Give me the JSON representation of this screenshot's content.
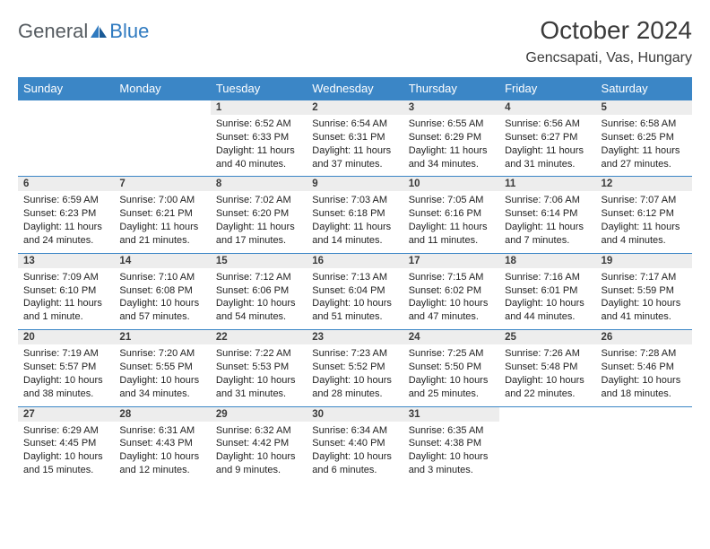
{
  "logo": {
    "text1": "General",
    "text2": "Blue"
  },
  "title": "October 2024",
  "location": "Gencsapati, Vas, Hungary",
  "colors": {
    "headerBg": "#3b86c6",
    "headerText": "#ffffff",
    "dayNumBg": "#ededed",
    "rowDivider": "#3b86c6",
    "textColor": "#222222",
    "logoGray": "#555b60",
    "logoBlue": "#2f7ac0",
    "pageBg": "#ffffff"
  },
  "typography": {
    "title_fontsize": 28,
    "location_fontsize": 16,
    "dayheader_fontsize": 13,
    "daynum_fontsize": 11.5,
    "cell_fontsize": 11
  },
  "dayHeaders": [
    "Sunday",
    "Monday",
    "Tuesday",
    "Wednesday",
    "Thursday",
    "Friday",
    "Saturday"
  ],
  "weeks": [
    [
      null,
      null,
      {
        "n": "1",
        "sr": "6:52 AM",
        "ss": "6:33 PM",
        "dl": "11 hours and 40 minutes."
      },
      {
        "n": "2",
        "sr": "6:54 AM",
        "ss": "6:31 PM",
        "dl": "11 hours and 37 minutes."
      },
      {
        "n": "3",
        "sr": "6:55 AM",
        "ss": "6:29 PM",
        "dl": "11 hours and 34 minutes."
      },
      {
        "n": "4",
        "sr": "6:56 AM",
        "ss": "6:27 PM",
        "dl": "11 hours and 31 minutes."
      },
      {
        "n": "5",
        "sr": "6:58 AM",
        "ss": "6:25 PM",
        "dl": "11 hours and 27 minutes."
      }
    ],
    [
      {
        "n": "6",
        "sr": "6:59 AM",
        "ss": "6:23 PM",
        "dl": "11 hours and 24 minutes."
      },
      {
        "n": "7",
        "sr": "7:00 AM",
        "ss": "6:21 PM",
        "dl": "11 hours and 21 minutes."
      },
      {
        "n": "8",
        "sr": "7:02 AM",
        "ss": "6:20 PM",
        "dl": "11 hours and 17 minutes."
      },
      {
        "n": "9",
        "sr": "7:03 AM",
        "ss": "6:18 PM",
        "dl": "11 hours and 14 minutes."
      },
      {
        "n": "10",
        "sr": "7:05 AM",
        "ss": "6:16 PM",
        "dl": "11 hours and 11 minutes."
      },
      {
        "n": "11",
        "sr": "7:06 AM",
        "ss": "6:14 PM",
        "dl": "11 hours and 7 minutes."
      },
      {
        "n": "12",
        "sr": "7:07 AM",
        "ss": "6:12 PM",
        "dl": "11 hours and 4 minutes."
      }
    ],
    [
      {
        "n": "13",
        "sr": "7:09 AM",
        "ss": "6:10 PM",
        "dl": "11 hours and 1 minute."
      },
      {
        "n": "14",
        "sr": "7:10 AM",
        "ss": "6:08 PM",
        "dl": "10 hours and 57 minutes."
      },
      {
        "n": "15",
        "sr": "7:12 AM",
        "ss": "6:06 PM",
        "dl": "10 hours and 54 minutes."
      },
      {
        "n": "16",
        "sr": "7:13 AM",
        "ss": "6:04 PM",
        "dl": "10 hours and 51 minutes."
      },
      {
        "n": "17",
        "sr": "7:15 AM",
        "ss": "6:02 PM",
        "dl": "10 hours and 47 minutes."
      },
      {
        "n": "18",
        "sr": "7:16 AM",
        "ss": "6:01 PM",
        "dl": "10 hours and 44 minutes."
      },
      {
        "n": "19",
        "sr": "7:17 AM",
        "ss": "5:59 PM",
        "dl": "10 hours and 41 minutes."
      }
    ],
    [
      {
        "n": "20",
        "sr": "7:19 AM",
        "ss": "5:57 PM",
        "dl": "10 hours and 38 minutes."
      },
      {
        "n": "21",
        "sr": "7:20 AM",
        "ss": "5:55 PM",
        "dl": "10 hours and 34 minutes."
      },
      {
        "n": "22",
        "sr": "7:22 AM",
        "ss": "5:53 PM",
        "dl": "10 hours and 31 minutes."
      },
      {
        "n": "23",
        "sr": "7:23 AM",
        "ss": "5:52 PM",
        "dl": "10 hours and 28 minutes."
      },
      {
        "n": "24",
        "sr": "7:25 AM",
        "ss": "5:50 PM",
        "dl": "10 hours and 25 minutes."
      },
      {
        "n": "25",
        "sr": "7:26 AM",
        "ss": "5:48 PM",
        "dl": "10 hours and 22 minutes."
      },
      {
        "n": "26",
        "sr": "7:28 AM",
        "ss": "5:46 PM",
        "dl": "10 hours and 18 minutes."
      }
    ],
    [
      {
        "n": "27",
        "sr": "6:29 AM",
        "ss": "4:45 PM",
        "dl": "10 hours and 15 minutes."
      },
      {
        "n": "28",
        "sr": "6:31 AM",
        "ss": "4:43 PM",
        "dl": "10 hours and 12 minutes."
      },
      {
        "n": "29",
        "sr": "6:32 AM",
        "ss": "4:42 PM",
        "dl": "10 hours and 9 minutes."
      },
      {
        "n": "30",
        "sr": "6:34 AM",
        "ss": "4:40 PM",
        "dl": "10 hours and 6 minutes."
      },
      {
        "n": "31",
        "sr": "6:35 AM",
        "ss": "4:38 PM",
        "dl": "10 hours and 3 minutes."
      },
      null,
      null
    ]
  ],
  "labels": {
    "sunrise": "Sunrise:",
    "sunset": "Sunset:",
    "daylight": "Daylight:"
  }
}
